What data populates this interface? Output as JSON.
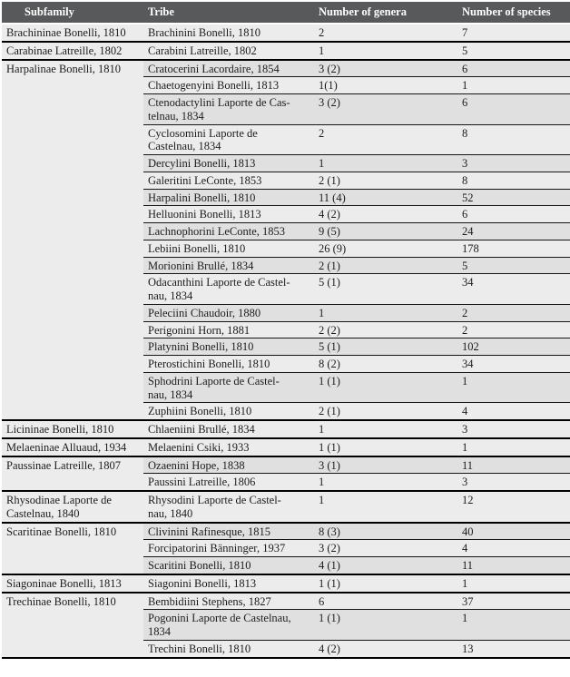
{
  "table": {
    "colors": {
      "header_bg": "#58595b",
      "header_text": "#ffffff",
      "row_light": "#ececec",
      "row_dark": "#e0e0e0",
      "border": "#000000",
      "text": "#1c1c1c"
    },
    "columns": [
      {
        "id": "subfamily",
        "label": "Subfamily"
      },
      {
        "id": "tribe",
        "label": "Tribe"
      },
      {
        "id": "genera",
        "label": "Number of genera"
      },
      {
        "id": "species",
        "label": "Number of species"
      }
    ],
    "groups": [
      {
        "subfamily": "Brachininae Bonelli, 1810",
        "rows": [
          {
            "tribe": "Brachinini Bonelli, 1810",
            "genera": "2",
            "species": "7",
            "shade": "light"
          }
        ]
      },
      {
        "subfamily": "Carabinae Latreille, 1802",
        "rows": [
          {
            "tribe": "Carabini Latreille, 1802",
            "genera": "1",
            "species": "5",
            "shade": "light"
          }
        ]
      },
      {
        "subfamily": "Harpalinae Bonelli, 1810",
        "rows": [
          {
            "tribe": "Cratocerini Lacordaire, 1854",
            "genera": "3 (2)",
            "species": "6",
            "shade": "dark"
          },
          {
            "tribe": "Chaetogenyini Bonelli, 1813",
            "genera": "1(1)",
            "species": "1",
            "shade": "light"
          },
          {
            "tribe": "Ctenodactylini Laporte de Cas-\ntelnau, 1834",
            "genera": "3 (2)",
            "species": "6",
            "shade": "dark"
          },
          {
            "tribe": "Cyclosomini Laporte de\nCastelnau, 1834",
            "genera": "2",
            "species": "8",
            "shade": "light"
          },
          {
            "tribe": "Dercylini Bonelli, 1813",
            "genera": "1",
            "species": "3",
            "shade": "dark"
          },
          {
            "tribe": "Galeritini LeConte, 1853",
            "genera": "2 (1)",
            "species": "8",
            "shade": "light"
          },
          {
            "tribe": "Harpalini Bonelli, 1810",
            "genera": "11 (4)",
            "species": "52",
            "shade": "dark"
          },
          {
            "tribe": "Helluonini Bonelli, 1813",
            "genera": "4 (2)",
            "species": "6",
            "shade": "light"
          },
          {
            "tribe": "Lachnophorini LeConte, 1853",
            "genera": "9 (5)",
            "species": "24",
            "shade": "dark"
          },
          {
            "tribe": "Lebiini Bonelli, 1810",
            "genera": "26 (9)",
            "species": "178",
            "shade": "light"
          },
          {
            "tribe": "Morionini Brullé, 1834",
            "genera": "2 (1)",
            "species": "5",
            "shade": "dark"
          },
          {
            "tribe": "Odacanthini Laporte de Castel-\nnau, 1834",
            "genera": "5 (1)",
            "species": "34",
            "shade": "light"
          },
          {
            "tribe": "Peleciini Chaudoir, 1880",
            "genera": "1",
            "species": "2",
            "shade": "dark"
          },
          {
            "tribe": "Perigonini Horn, 1881",
            "genera": "2 (2)",
            "species": "2",
            "shade": "light"
          },
          {
            "tribe": "Platynini Bonelli, 1810",
            "genera": "5 (1)",
            "species": "102",
            "shade": "dark"
          },
          {
            "tribe": "Pterostichini Bonelli, 1810",
            "genera": "8 (2)",
            "species": "34",
            "shade": "light"
          },
          {
            "tribe": "Sphodrini Laporte de Castel-\nnau, 1834",
            "genera": "1 (1)",
            "species": "1",
            "shade": "dark"
          },
          {
            "tribe": "Zuphiini Bonelli, 1810",
            "genera": "2 (1)",
            "species": "4",
            "shade": "light"
          }
        ]
      },
      {
        "subfamily": "Licininae Bonelli, 1810",
        "rows": [
          {
            "tribe": "Chlaeniini Brullé, 1834",
            "genera": "1",
            "species": "3",
            "shade": "light"
          }
        ]
      },
      {
        "subfamily": "Melaeninae Alluaud, 1934",
        "rows": [
          {
            "tribe": "Melaenini Csiki, 1933",
            "genera": "1 (1)",
            "species": "1",
            "shade": "light"
          }
        ]
      },
      {
        "subfamily": "Paussinae Latreille, 1807",
        "rows": [
          {
            "tribe": "Ozaenini Hope, 1838",
            "genera": "3 (1)",
            "species": "11",
            "shade": "dark"
          },
          {
            "tribe": "Paussini Latreille, 1806",
            "genera": "1",
            "species": "3",
            "shade": "light"
          }
        ]
      },
      {
        "subfamily": "Rhysodinae Laporte de\nCastelnau, 1840",
        "rows": [
          {
            "tribe": "Rhysodini Laporte de Castel-\nnau, 1840",
            "genera": "1",
            "species": "12",
            "shade": "light"
          }
        ]
      },
      {
        "subfamily": "Scaritinae Bonelli, 1810",
        "rows": [
          {
            "tribe": "Clivinini Rafinesque, 1815",
            "genera": "8 (3)",
            "species": "40",
            "shade": "dark"
          },
          {
            "tribe": "Forcipatorini Bänninger, 1937",
            "genera": "3 (2)",
            "species": "4",
            "shade": "light"
          },
          {
            "tribe": "Scaritini Bonelli, 1810",
            "genera": "4 (1)",
            "species": "11",
            "shade": "dark"
          }
        ]
      },
      {
        "subfamily": "Siagoninae Bonelli, 1813",
        "rows": [
          {
            "tribe": "Siagonini Bonelli, 1813",
            "genera": "1 (1)",
            "species": "1",
            "shade": "light"
          }
        ]
      },
      {
        "subfamily": "Trechinae Bonelli, 1810",
        "rows": [
          {
            "tribe": "Bembidiini Stephens, 1827",
            "genera": "6",
            "species": "37",
            "shade": "light"
          },
          {
            "tribe": "Pogonini Laporte de Castelnau,\n1834",
            "genera": "1 (1)",
            "species": "1",
            "shade": "dark"
          },
          {
            "tribe": "Trechini Bonelli, 1810",
            "genera": "4 (2)",
            "species": "13",
            "shade": "light"
          }
        ]
      }
    ]
  }
}
